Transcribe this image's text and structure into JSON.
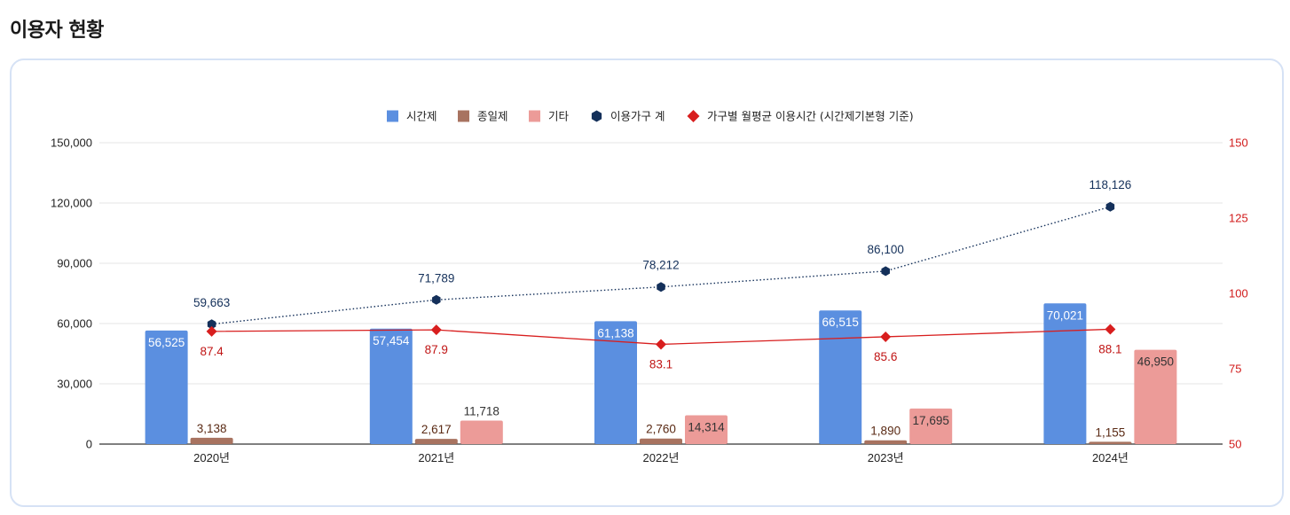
{
  "page": {
    "title": "이용자 현황"
  },
  "colors": {
    "time_based": "#5b8fe0",
    "full_day": "#a87360",
    "other": "#ec9b98",
    "households": "#14305a",
    "avg_hours": "#d81e1e",
    "card_border": "#d6e2f5"
  },
  "legend": [
    {
      "label": "시간제",
      "marker": "square",
      "color": "#5b8fe0"
    },
    {
      "label": "종일제",
      "marker": "square",
      "color": "#a87360"
    },
    {
      "label": "기타",
      "marker": "square",
      "color": "#ec9b98"
    },
    {
      "label": "이용가구 계",
      "marker": "hexagon",
      "color": "#14305a"
    },
    {
      "label": "가구별 월평균 이용시간 (시간제기본형 기준)",
      "marker": "diamond",
      "color": "#d81e1e"
    }
  ],
  "chart_data": {
    "type": "bar",
    "categories": [
      "2020년",
      "2021년",
      "2022년",
      "2023년",
      "2024년"
    ],
    "ylim": [
      0,
      150000
    ],
    "y_ticks": [
      0,
      30000,
      60000,
      90000,
      120000,
      150000
    ],
    "y_tick_labels": [
      "0",
      "30,000",
      "60,000",
      "90,000",
      "120,000",
      "150,000"
    ],
    "y2lim": [
      50,
      150
    ],
    "y2_ticks": [
      50,
      75,
      100,
      125,
      150
    ],
    "y2_tick_labels": [
      "50",
      "75",
      "100",
      "125",
      "150"
    ],
    "grid": true,
    "legend_position": "top-center",
    "series": [
      {
        "name": "시간제",
        "type": "bar",
        "axis": "left",
        "values": [
          56525,
          57454,
          61138,
          66515,
          70021
        ],
        "labels": [
          "56,525",
          "57,454",
          "61,138",
          "66,515",
          "70,021"
        ]
      },
      {
        "name": "종일제",
        "type": "bar",
        "axis": "left",
        "values": [
          3138,
          2617,
          2760,
          1890,
          1155
        ],
        "labels": [
          "3,138",
          "2,617",
          "2,760",
          "1,890",
          "1,155"
        ]
      },
      {
        "name": "기타",
        "type": "bar",
        "axis": "left",
        "values": [
          null,
          11718,
          14314,
          17695,
          46950
        ],
        "labels": [
          "",
          "11,718",
          "14,314",
          "17,695",
          "46,950"
        ]
      },
      {
        "name": "이용가구 계",
        "type": "line",
        "style": "dotted",
        "axis": "left",
        "values": [
          59663,
          71789,
          78212,
          86100,
          118126
        ],
        "labels": [
          "59,663",
          "71,789",
          "78,212",
          "86,100",
          "118,126"
        ]
      },
      {
        "name": "가구별 월평균 이용시간 (시간제기본형 기준)",
        "type": "line",
        "axis": "right",
        "values": [
          87.4,
          87.9,
          83.1,
          85.6,
          88.1
        ],
        "labels": [
          "87.4",
          "87.9",
          "83.1",
          "85.6",
          "88.1"
        ]
      }
    ]
  }
}
